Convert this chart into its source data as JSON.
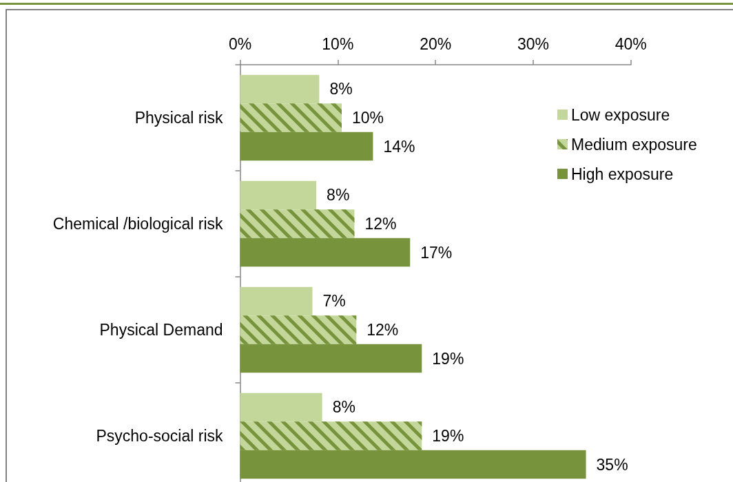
{
  "chart_data": {
    "type": "bar",
    "orientation": "horizontal",
    "categories": [
      "Physical risk",
      "Chemical /biological risk",
      "Physical Demand",
      "Psycho-social risk"
    ],
    "series": [
      {
        "name": "Low exposure",
        "color": "#c4d79b",
        "values": [
          8.1,
          7.8,
          7.4,
          8.4
        ],
        "value_labels": [
          "8%",
          "8%",
          "7%",
          "8%"
        ]
      },
      {
        "name": "Medium exposure",
        "color": "#77933c",
        "values": [
          10.4,
          11.7,
          11.9,
          18.6
        ],
        "value_labels": [
          "10%",
          "12%",
          "12%",
          "19%"
        ]
      },
      {
        "name": "High exposure",
        "color": "#77933c",
        "values": [
          13.6,
          17.4,
          18.6,
          35.4
        ],
        "value_labels": [
          "14%",
          "17%",
          "19%",
          "35%"
        ]
      }
    ],
    "xlim": [
      0,
      40
    ],
    "xticks": [
      {
        "value": 0,
        "label": "0%"
      },
      {
        "value": 10,
        "label": "10%"
      },
      {
        "value": 20,
        "label": "20%"
      },
      {
        "value": 30,
        "label": "30%"
      },
      {
        "value": 40,
        "label": "40%"
      }
    ],
    "legend": "right"
  }
}
